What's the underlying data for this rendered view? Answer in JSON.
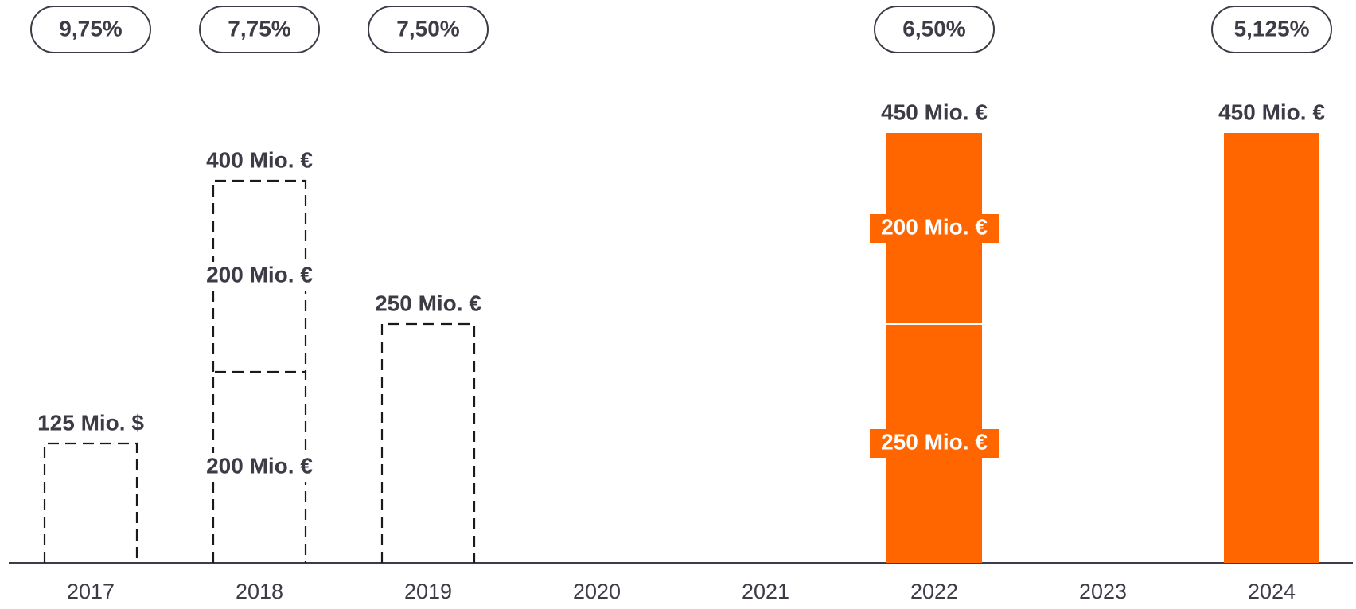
{
  "chart_data": {
    "type": "bar",
    "categories": [
      "2017",
      "2018",
      "2019",
      "2020",
      "2021",
      "2022",
      "2023",
      "2024"
    ],
    "coupon_labels": [
      "9,75%",
      "7,75%",
      "7,50%",
      null,
      null,
      "6,50%",
      null,
      "5,125%"
    ],
    "series": [
      {
        "color": "#ff6600",
        "values": [
          125,
          200,
          250,
          null,
          null,
          250,
          null,
          450
        ],
        "value_labels": [
          null,
          "200 Mio. €",
          null,
          null,
          null,
          "250 Mio. €",
          null,
          null
        ]
      },
      {
        "color": "#ff6600",
        "values": [
          null,
          200,
          null,
          null,
          null,
          200,
          null,
          null
        ],
        "value_labels": [
          null,
          "200 Mio. €",
          null,
          null,
          null,
          "200 Mio. €",
          null,
          null
        ]
      }
    ],
    "totals": [
      125,
      400,
      250,
      null,
      null,
      450,
      null,
      450
    ],
    "total_labels": [
      "125 Mio. $",
      "400 Mio. €",
      "250 Mio. €",
      null,
      null,
      "450 Mio. €",
      null,
      "450 Mio. €"
    ],
    "dashed": [
      true,
      true,
      true,
      false,
      false,
      false,
      false,
      false
    ],
    "ylim": [
      0,
      450
    ]
  }
}
